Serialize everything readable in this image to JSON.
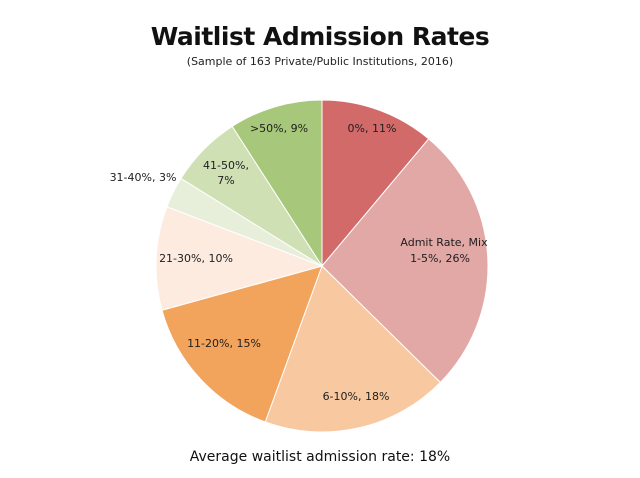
{
  "chart_data": {
    "type": "pie",
    "title": "Waitlist Admission Rates",
    "subtitle": "(Sample of 163 Private/Public Institutions, 2016)",
    "legend_title": "Admit Rate, Mix",
    "slices": [
      {
        "label": "0%, 11%",
        "category": "0%",
        "value": 11,
        "color": "#d36a6a"
      },
      {
        "label": "1-5%, 26%",
        "category": "1-5%",
        "value": 26,
        "color": "#e2a8a6"
      },
      {
        "label": "6-10%, 18%",
        "category": "6-10%",
        "value": 18,
        "color": "#f8c8a0"
      },
      {
        "label": "11-20%, 15%",
        "category": "11-20%",
        "value": 15,
        "color": "#f2a45c"
      },
      {
        "label": "21-30%, 10%",
        "category": "21-30%",
        "value": 10,
        "color": "#fdebe0"
      },
      {
        "label": "31-40%, 3%",
        "category": "31-40%",
        "value": 3,
        "color": "#e7eed9"
      },
      {
        "label": "41-50%, 7%",
        "category": "41-50%",
        "value": 7,
        "color": "#cfe0b5"
      },
      {
        "label": ">50%, 9%",
        "category": ">50%",
        "value": 9,
        "color": "#a7c77a"
      }
    ],
    "footnote": "Average waitlist admission rate: 18%"
  }
}
